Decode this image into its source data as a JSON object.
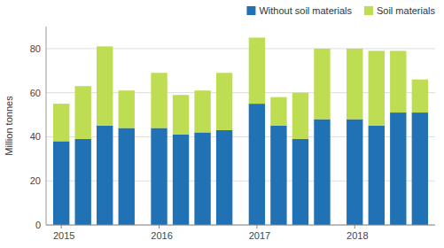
{
  "chart_data": {
    "type": "bar",
    "stacked": true,
    "categories": [
      "2015",
      null,
      null,
      null,
      "2016",
      null,
      null,
      null,
      "2017",
      null,
      null,
      null,
      "2018",
      null,
      null,
      null
    ],
    "series": [
      {
        "name": "Without soil materials",
        "color": "#2171B5",
        "values": [
          38,
          39,
          45,
          44,
          44,
          41,
          42,
          43,
          55,
          45,
          39,
          48,
          48,
          45,
          51,
          51
        ]
      },
      {
        "name": "Soil materials",
        "color": "#BEDD52",
        "values": [
          17,
          24,
          36,
          17,
          25,
          18,
          19,
          26,
          30,
          13,
          21,
          32,
          32,
          34,
          28,
          15
        ]
      }
    ],
    "ylabel": "Million tonnes",
    "ylim": [
      0,
      90
    ],
    "yticks": [
      0,
      20,
      40,
      60,
      80
    ],
    "grid": true,
    "legend": "upper right"
  }
}
